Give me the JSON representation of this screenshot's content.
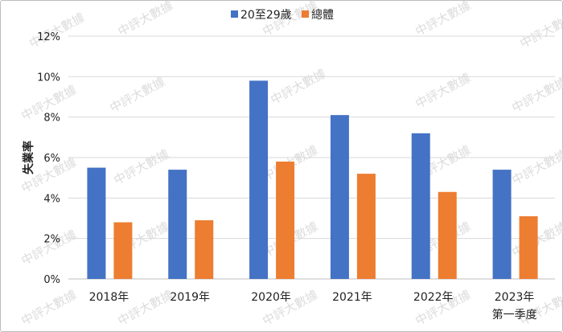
{
  "watermark": "中評大數據",
  "chart_data": {
    "type": "bar",
    "title": "",
    "xlabel": "",
    "ylabel": "失業率",
    "ylim": [
      0,
      12
    ],
    "yticks": [
      "0%",
      "2%",
      "4%",
      "6%",
      "8%",
      "10%",
      "12%"
    ],
    "grid": true,
    "legend": "top",
    "categories": [
      [
        "2018年"
      ],
      [
        "2019年"
      ],
      [
        "2020年"
      ],
      [
        "2021年"
      ],
      [
        "2022年"
      ],
      [
        "2023年",
        "第一季度"
      ]
    ],
    "series": [
      {
        "name": "20至29歲",
        "color": "#4472c4",
        "values": [
          5.5,
          5.4,
          9.8,
          8.1,
          7.2,
          5.4
        ]
      },
      {
        "name": "總體",
        "color": "#ed7d31",
        "values": [
          2.8,
          2.9,
          5.8,
          5.2,
          4.3,
          3.1
        ]
      }
    ]
  }
}
